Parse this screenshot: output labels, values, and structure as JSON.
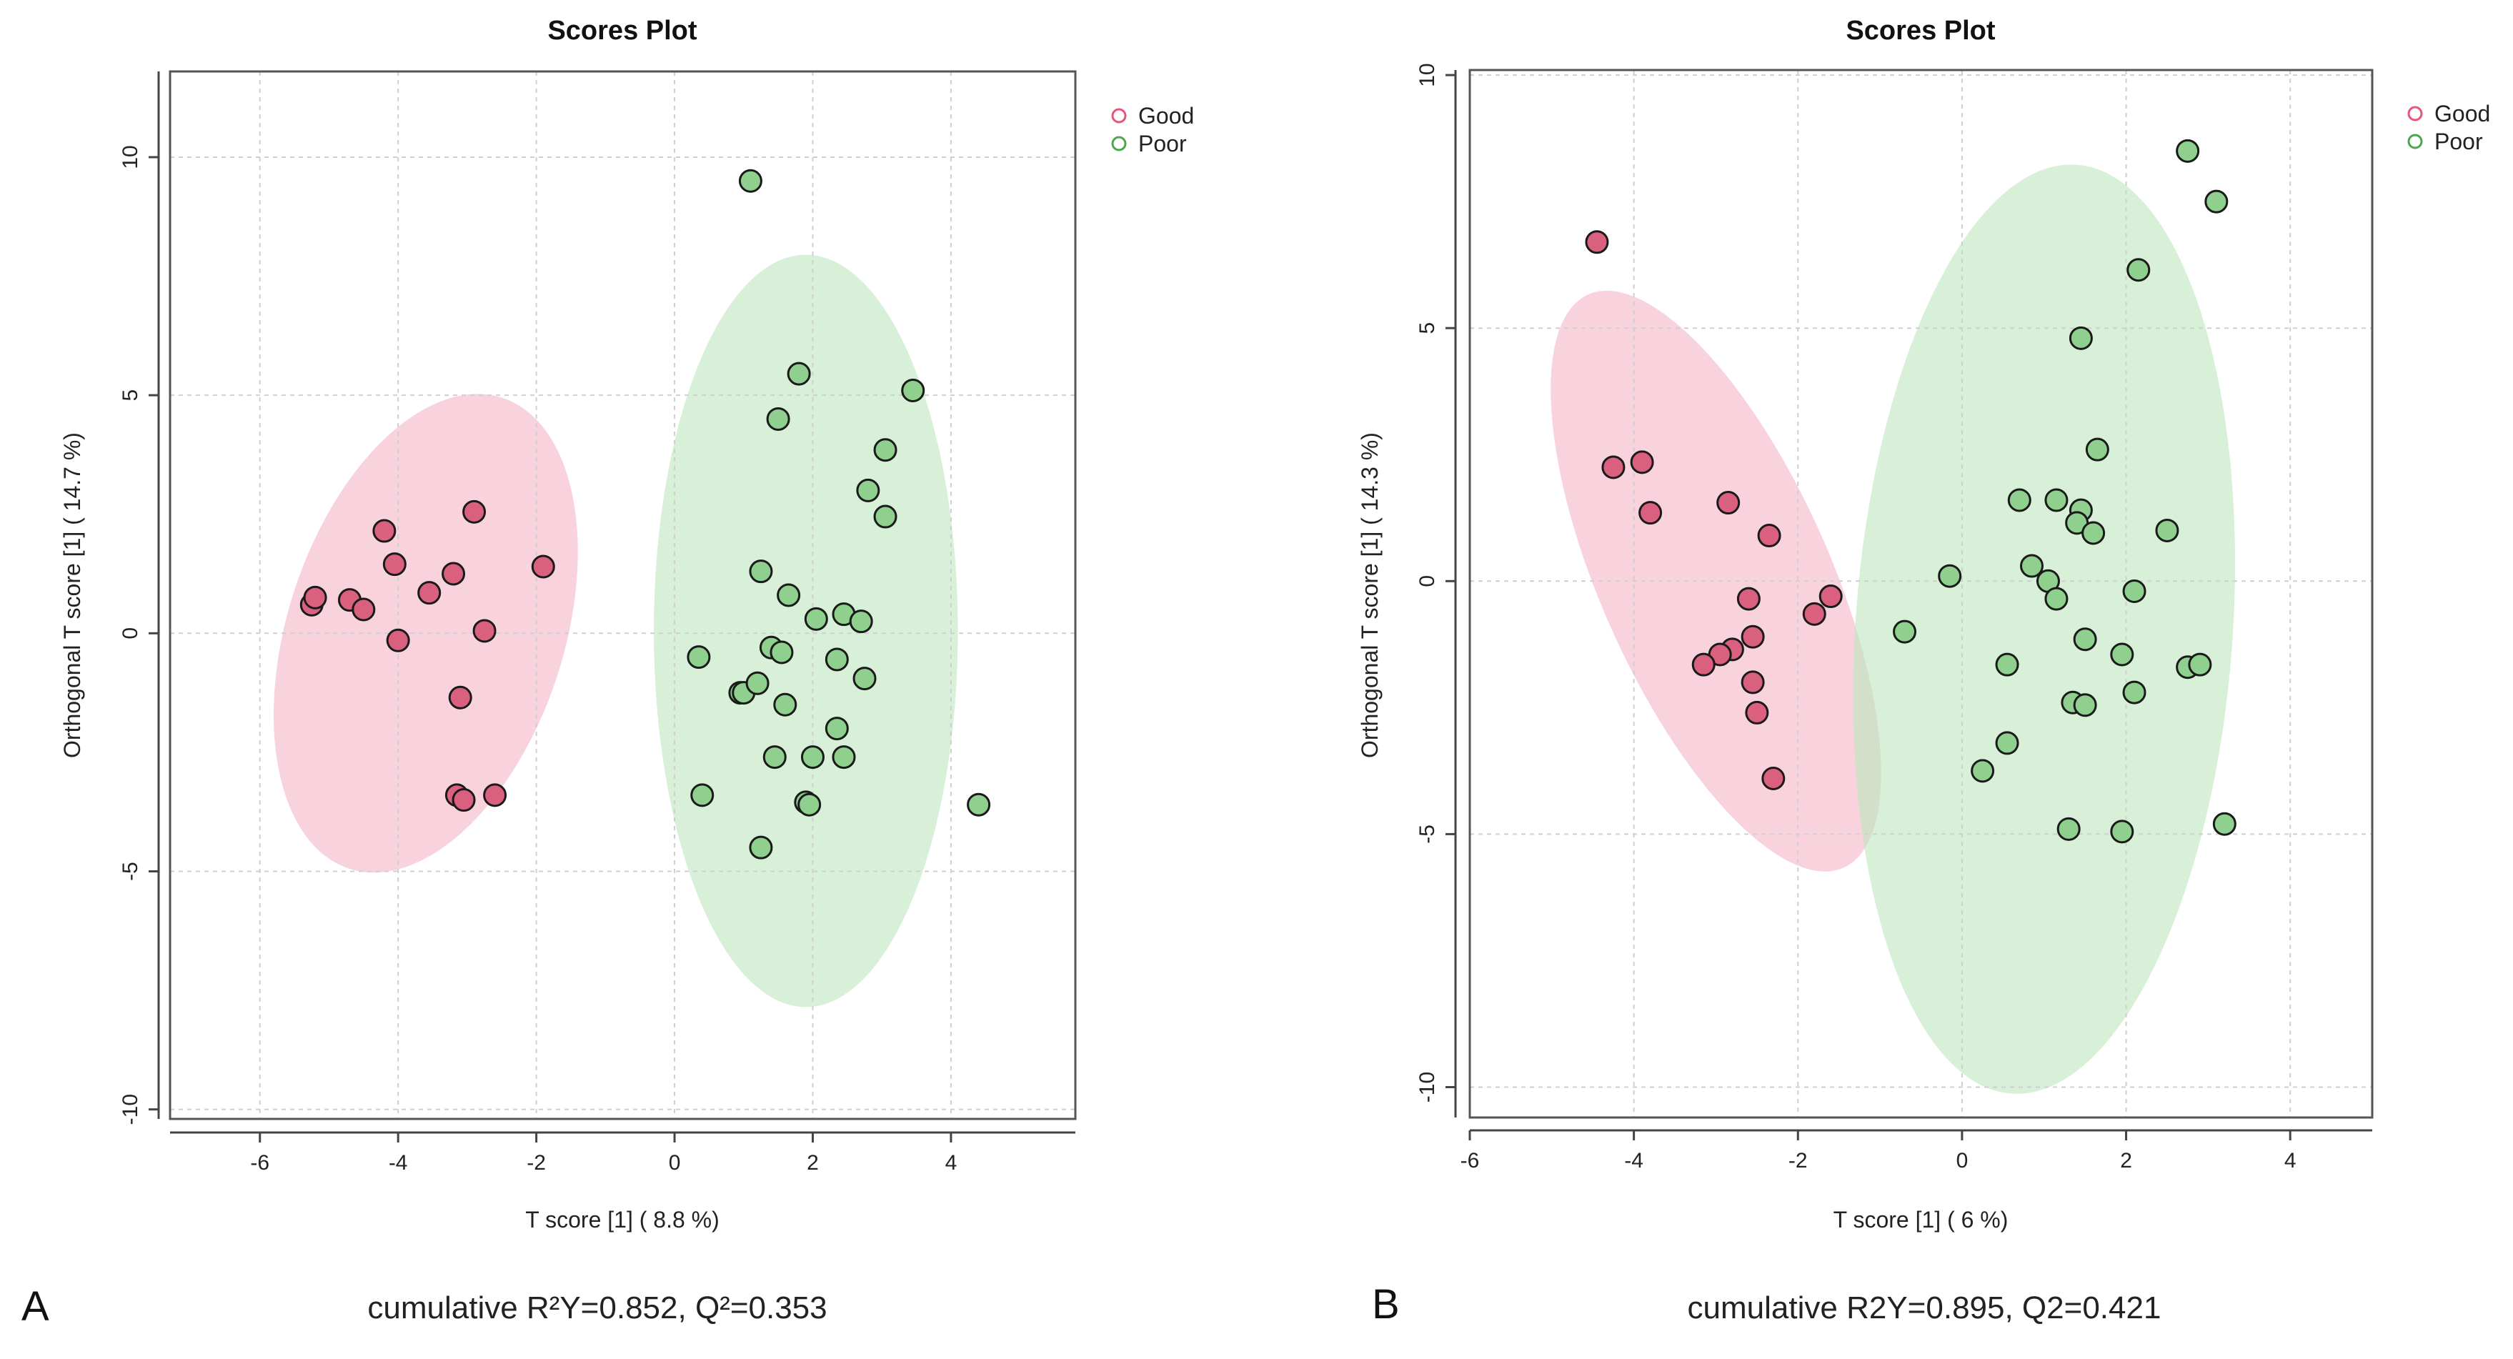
{
  "chart_data": [
    {
      "panel": "A",
      "type": "scatter",
      "title": "Scores Plot",
      "xlabel": "T score [1] ( 8.8 %)",
      "ylabel": "Orthogonal T score [1] ( 14.7 %)",
      "xlim": [
        -7.3,
        5.8
      ],
      "ylim": [
        -10.2,
        11.8
      ],
      "xticks": [
        -6,
        -4,
        -2,
        0,
        2,
        4
      ],
      "yticks": [
        -10,
        -5,
        0,
        5,
        10
      ],
      "xtick_labels": [
        "-6",
        "-4",
        "-2",
        "0",
        "2",
        "4"
      ],
      "ytick_labels": [
        "-10",
        "-5",
        "0",
        "5",
        "10"
      ],
      "grid": true,
      "legend_position": "top-right",
      "caption": "cumulative R²Y=0.852, Q²=0.353",
      "series": [
        {
          "name": "Good",
          "color": "#e8547a",
          "fill": "#d9617f",
          "ellipse": {
            "cx": -3.6,
            "cy": 0.0,
            "rx": 2.0,
            "ry": 5.2,
            "rotation_deg": 18,
            "color": "#f4b8c8"
          },
          "points": [
            [
              -5.25,
              0.6
            ],
            [
              -5.2,
              0.75
            ],
            [
              -4.7,
              0.7
            ],
            [
              -4.5,
              0.5
            ],
            [
              -4.2,
              2.15
            ],
            [
              -4.05,
              1.45
            ],
            [
              -4.0,
              -0.15
            ],
            [
              -3.55,
              0.85
            ],
            [
              -3.2,
              1.25
            ],
            [
              -3.1,
              -1.35
            ],
            [
              -3.15,
              -3.4
            ],
            [
              -3.05,
              -3.5
            ],
            [
              -2.9,
              2.55
            ],
            [
              -2.75,
              0.05
            ],
            [
              -2.6,
              -3.4
            ],
            [
              -1.9,
              1.4
            ]
          ]
        },
        {
          "name": "Poor",
          "color": "#4aa84a",
          "fill": "#8fd08f",
          "ellipse": {
            "cx": 1.9,
            "cy": 0.05,
            "rx": 2.2,
            "ry": 7.9,
            "rotation_deg": 0,
            "color": "#bfe6bf"
          },
          "points": [
            [
              1.1,
              9.5
            ],
            [
              1.8,
              5.45
            ],
            [
              1.5,
              4.5
            ],
            [
              3.45,
              5.1
            ],
            [
              3.05,
              3.85
            ],
            [
              2.8,
              3.0
            ],
            [
              3.05,
              2.45
            ],
            [
              1.25,
              1.3
            ],
            [
              1.65,
              0.8
            ],
            [
              2.05,
              0.3
            ],
            [
              2.45,
              0.4
            ],
            [
              2.7,
              0.25
            ],
            [
              0.35,
              -0.5
            ],
            [
              1.4,
              -0.3
            ],
            [
              1.55,
              -0.4
            ],
            [
              2.35,
              -0.55
            ],
            [
              0.95,
              -1.25
            ],
            [
              1.0,
              -1.25
            ],
            [
              1.2,
              -1.05
            ],
            [
              2.75,
              -0.95
            ],
            [
              1.6,
              -1.5
            ],
            [
              2.35,
              -2.0
            ],
            [
              1.45,
              -2.6
            ],
            [
              2.0,
              -2.6
            ],
            [
              2.45,
              -2.6
            ],
            [
              0.4,
              -3.4
            ],
            [
              1.9,
              -3.55
            ],
            [
              1.95,
              -3.6
            ],
            [
              4.4,
              -3.6
            ],
            [
              1.25,
              -4.5
            ]
          ]
        }
      ]
    },
    {
      "panel": "B",
      "type": "scatter",
      "title": "Scores Plot",
      "xlabel": "T score [1] ( 6 %)",
      "ylabel": "Orthogonal T score [1] ( 14.3 %)",
      "xlim": [
        -6.0,
        5.0
      ],
      "ylim": [
        -10.6,
        10.1
      ],
      "xticks": [
        -6,
        -4,
        -2,
        0,
        2,
        4
      ],
      "yticks": [
        -10,
        -5,
        0,
        5,
        10
      ],
      "xtick_labels": [
        "-6",
        "-4",
        "-2",
        "0",
        "2",
        "4"
      ],
      "ytick_labels": [
        "-10",
        "-5",
        "0",
        "5",
        "10"
      ],
      "grid": true,
      "legend_position": "top-right",
      "caption": "cumulative R2Y=0.895, Q2=0.421",
      "series": [
        {
          "name": "Good",
          "color": "#e8547a",
          "fill": "#d9617f",
          "ellipse": {
            "cx": -3.0,
            "cy": 0.0,
            "rx": 1.4,
            "ry": 6.2,
            "rotation_deg": -24,
            "color": "#f4b8c8"
          },
          "points": [
            [
              -4.45,
              6.7
            ],
            [
              -4.25,
              2.25
            ],
            [
              -3.9,
              2.35
            ],
            [
              -3.8,
              1.35
            ],
            [
              -2.85,
              1.55
            ],
            [
              -2.35,
              0.9
            ],
            [
              -2.6,
              -0.35
            ],
            [
              -1.6,
              -0.3
            ],
            [
              -1.8,
              -0.65
            ],
            [
              -2.55,
              -1.1
            ],
            [
              -2.8,
              -1.35
            ],
            [
              -2.95,
              -1.45
            ],
            [
              -3.15,
              -1.65
            ],
            [
              -2.55,
              -2.0
            ],
            [
              -2.5,
              -2.6
            ],
            [
              -2.3,
              -3.9
            ]
          ]
        },
        {
          "name": "Poor",
          "color": "#4aa84a",
          "fill": "#8fd08f",
          "ellipse": {
            "cx": 1.0,
            "cy": -0.95,
            "rx": 2.3,
            "ry": 9.2,
            "rotation_deg": 4,
            "color": "#bfe6bf"
          },
          "points": [
            [
              2.75,
              8.5
            ],
            [
              3.1,
              7.5
            ],
            [
              2.15,
              6.15
            ],
            [
              1.45,
              4.8
            ],
            [
              1.65,
              2.6
            ],
            [
              0.7,
              1.6
            ],
            [
              1.15,
              1.6
            ],
            [
              1.45,
              1.4
            ],
            [
              1.4,
              1.15
            ],
            [
              1.6,
              0.95
            ],
            [
              2.5,
              1.0
            ],
            [
              0.85,
              0.3
            ],
            [
              1.05,
              0.0
            ],
            [
              -0.15,
              0.1
            ],
            [
              1.15,
              -0.35
            ],
            [
              2.1,
              -0.2
            ],
            [
              -0.7,
              -1.0
            ],
            [
              1.5,
              -1.15
            ],
            [
              1.95,
              -1.45
            ],
            [
              0.55,
              -1.65
            ],
            [
              2.75,
              -1.7
            ],
            [
              2.9,
              -1.65
            ],
            [
              2.1,
              -2.2
            ],
            [
              1.35,
              -2.4
            ],
            [
              1.5,
              -2.45
            ],
            [
              0.55,
              -3.2
            ],
            [
              0.25,
              -3.75
            ],
            [
              1.3,
              -4.9
            ],
            [
              1.95,
              -4.95
            ],
            [
              3.2,
              -4.8
            ]
          ]
        }
      ]
    }
  ]
}
